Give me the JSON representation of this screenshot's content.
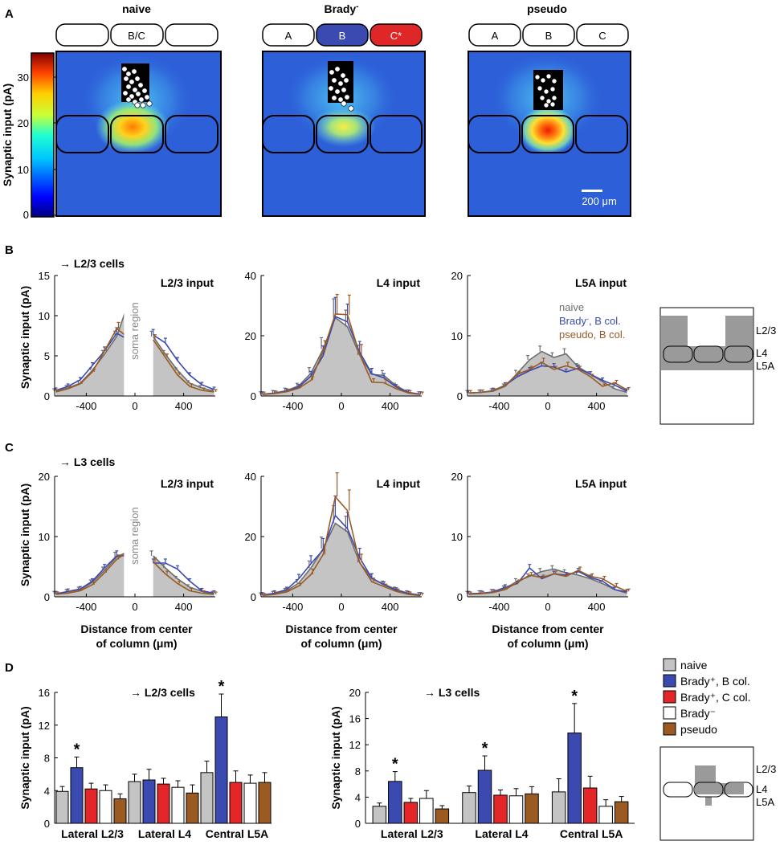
{
  "panels": {
    "A": {
      "label": "A",
      "heatmaps": [
        {
          "title": "naive",
          "boxes": [
            "",
            "B/C",
            ""
          ],
          "box_colors": [
            "#ffffff",
            "#ffffff",
            "#ffffff"
          ]
        },
        {
          "title": "Brady",
          "title_sup": "-",
          "boxes": [
            "A",
            "B",
            "C*"
          ],
          "box_colors": [
            "#ffffff",
            "#3b4ab0",
            "#e02727"
          ]
        },
        {
          "title": "pseudo",
          "boxes": [
            "A",
            "B",
            "C"
          ],
          "box_colors": [
            "#ffffff",
            "#ffffff",
            "#ffffff"
          ]
        }
      ],
      "colorbar": {
        "label": "Synaptic input (pA)",
        "ticks": [
          "30",
          "20",
          "10",
          "0"
        ]
      },
      "scalebar": "200 μm"
    },
    "B": {
      "label": "B",
      "subtitle": "→ L2/3 cells"
    },
    "C": {
      "label": "C",
      "subtitle": "→ L3 cells"
    },
    "D": {
      "label": "D"
    },
    "profile_ylabel": "Synaptic input (pA)",
    "profile_xlabel_1": "Distance from center",
    "profile_xlabel_2": "of column (μm)",
    "soma_region": "soma region",
    "legend_BC": {
      "naive": "naive",
      "brady_prefix": "Brady",
      "brady_sup": "-",
      "brady_suffix": ", B col.",
      "pseudo": "pseudo, B col."
    },
    "schematic_layers": {
      "l23": "L2/3",
      "l4": "L4",
      "l5a": "L5A"
    },
    "legend_D": [
      "naive",
      "Brady⁺, B col.",
      "Brady⁺, C col.",
      "Brady⁻",
      "pseudo"
    ],
    "colors": {
      "naive": "#c4c4c4",
      "naive_line": "#6e6e6e",
      "brady": "#3b4ab0",
      "bradyC": "#e52629",
      "bradyminus": "#ffffff",
      "pseudo": "#9a5a22"
    }
  },
  "chart_data": [
    {
      "id": "B1",
      "type": "line",
      "panel": "B",
      "title": "L2/3 input",
      "x": [
        -650,
        -550,
        -450,
        -350,
        -250,
        -150,
        -50,
        150,
        250,
        350,
        450,
        550,
        650
      ],
      "ylim": [
        0,
        15
      ],
      "xlim": [
        -660,
        660
      ],
      "yticks": [
        0,
        5,
        10,
        15
      ],
      "xticks": [
        -400,
        0,
        400
      ],
      "series": [
        {
          "name": "naive",
          "values": [
            0.6,
            1.0,
            1.6,
            3.2,
            5.2,
            7.4,
            11.8,
            7.4,
            5.2,
            3.2,
            1.6,
            1.0,
            0.6
          ]
        },
        {
          "name": "Brady-, B col.",
          "values": [
            0.7,
            1.2,
            2.0,
            3.8,
            5.6,
            7.8,
            7.0,
            7.6,
            6.6,
            4.4,
            2.6,
            1.4,
            0.8
          ]
        },
        {
          "name": "pseudo, B col.",
          "values": [
            0.5,
            0.9,
            1.5,
            3.0,
            5.6,
            8.4,
            7.2,
            7.0,
            4.8,
            2.6,
            1.2,
            0.7,
            0.5
          ]
        }
      ]
    },
    {
      "id": "B2",
      "type": "line",
      "panel": "B",
      "title": "L4 input",
      "x": [
        -650,
        -550,
        -450,
        -350,
        -250,
        -150,
        -50,
        50,
        150,
        250,
        350,
        450,
        550,
        650
      ],
      "ylim": [
        0,
        40
      ],
      "xlim": [
        -660,
        660
      ],
      "yticks": [
        0,
        20,
        40
      ],
      "xticks": [
        -400,
        0,
        400
      ],
      "series": [
        {
          "name": "naive",
          "values": [
            0.6,
            1.0,
            1.8,
            3.4,
            7.6,
            15.6,
            26.0,
            23.0,
            13.6,
            7.2,
            6.8,
            3.4,
            1.2,
            0.6
          ]
        },
        {
          "name": "Brady-, B col.",
          "values": [
            0.6,
            0.9,
            1.6,
            3.0,
            6.6,
            13.4,
            26.4,
            24.6,
            14.6,
            7.4,
            6.0,
            3.0,
            1.2,
            0.6
          ]
        },
        {
          "name": "pseudo, B col.",
          "values": [
            0.5,
            0.8,
            1.4,
            2.6,
            5.2,
            14.8,
            27.2,
            27.0,
            13.8,
            4.6,
            4.4,
            2.4,
            1.0,
            0.5
          ]
        }
      ]
    },
    {
      "id": "B3",
      "type": "line",
      "panel": "B",
      "title": "L5A input",
      "x": [
        -650,
        -550,
        -450,
        -350,
        -250,
        -150,
        -50,
        50,
        150,
        250,
        350,
        450,
        550,
        650
      ],
      "ylim": [
        0,
        20
      ],
      "xlim": [
        -660,
        660
      ],
      "yticks": [
        0,
        10,
        20
      ],
      "xticks": [
        -400,
        0,
        400
      ],
      "series": [
        {
          "name": "naive",
          "values": [
            0.5,
            0.6,
            0.8,
            1.6,
            3.8,
            6.0,
            7.4,
            6.4,
            7.0,
            4.8,
            3.6,
            2.4,
            1.2,
            0.6
          ]
        },
        {
          "name": "Brady-, B col.",
          "values": [
            0.5,
            0.6,
            0.9,
            1.8,
            3.2,
            4.2,
            5.0,
            4.8,
            4.0,
            4.6,
            3.6,
            2.6,
            1.8,
            0.8
          ]
        },
        {
          "name": "pseudo, B col.",
          "values": [
            0.5,
            0.6,
            0.8,
            1.8,
            3.6,
            4.4,
            5.6,
            4.4,
            5.0,
            4.4,
            3.2,
            1.6,
            2.2,
            1.0
          ]
        }
      ]
    },
    {
      "id": "C1",
      "type": "line",
      "panel": "C",
      "title": "L2/3 input",
      "x": [
        -650,
        -550,
        -450,
        -350,
        -250,
        -150,
        -50,
        150,
        250,
        350,
        450,
        550,
        650
      ],
      "ylim": [
        0,
        20
      ],
      "xlim": [
        -660,
        660
      ],
      "yticks": [
        0,
        10,
        20
      ],
      "xticks": [
        -400,
        0,
        400
      ],
      "series": [
        {
          "name": "naive",
          "values": [
            0.5,
            0.8,
            1.2,
            2.4,
            4.4,
            6.6,
            7.6,
            6.8,
            4.8,
            3.0,
            1.6,
            0.9,
            0.5
          ]
        },
        {
          "name": "Brady-, B col.",
          "values": [
            0.5,
            0.9,
            1.3,
            2.6,
            4.8,
            6.8,
            6.8,
            5.6,
            5.6,
            4.6,
            2.6,
            1.0,
            0.6
          ]
        },
        {
          "name": "pseudo, B col.",
          "values": [
            0.4,
            0.6,
            1.0,
            2.0,
            4.0,
            6.2,
            7.6,
            5.8,
            3.8,
            2.2,
            1.0,
            0.6,
            0.4
          ]
        }
      ]
    },
    {
      "id": "C2",
      "type": "line",
      "panel": "C",
      "title": "L4 input",
      "x": [
        -650,
        -550,
        -450,
        -350,
        -250,
        -150,
        -50,
        50,
        150,
        250,
        350,
        450,
        550,
        650
      ],
      "ylim": [
        0,
        40
      ],
      "xlim": [
        -660,
        660
      ],
      "yticks": [
        0,
        20,
        40
      ],
      "xticks": [
        -400,
        0,
        400
      ],
      "series": [
        {
          "name": "naive",
          "values": [
            0.5,
            1.0,
            2.0,
            4.6,
            9.6,
            16.0,
            24.4,
            21.6,
            11.4,
            6.0,
            4.2,
            2.4,
            1.2,
            0.6
          ]
        },
        {
          "name": "Brady-, B col.",
          "values": [
            0.6,
            1.2,
            2.4,
            6.0,
            11.0,
            15.6,
            27.0,
            22.6,
            13.0,
            6.2,
            4.0,
            2.2,
            1.0,
            0.6
          ]
        },
        {
          "name": "pseudo, B col.",
          "values": [
            0.4,
            0.8,
            1.6,
            3.6,
            7.4,
            14.0,
            33.2,
            28.6,
            11.4,
            5.0,
            3.4,
            1.8,
            0.8,
            0.4
          ]
        }
      ]
    },
    {
      "id": "C3",
      "type": "line",
      "panel": "C",
      "title": "L5A input",
      "x": [
        -650,
        -550,
        -450,
        -350,
        -250,
        -150,
        -50,
        50,
        150,
        250,
        350,
        450,
        550,
        650
      ],
      "ylim": [
        0,
        20
      ],
      "xlim": [
        -660,
        660
      ],
      "yticks": [
        0,
        10,
        20
      ],
      "xticks": [
        -400,
        0,
        400
      ],
      "series": [
        {
          "name": "naive",
          "values": [
            0.5,
            0.6,
            0.8,
            1.4,
            2.6,
            3.4,
            4.2,
            4.6,
            4.0,
            3.6,
            3.0,
            2.2,
            1.2,
            0.6
          ]
        },
        {
          "name": "Brady-, B col.",
          "values": [
            0.5,
            0.6,
            0.8,
            1.6,
            2.2,
            4.8,
            3.0,
            3.8,
            3.6,
            4.2,
            3.2,
            2.6,
            1.2,
            0.8
          ]
        },
        {
          "name": "pseudo, B col.",
          "values": [
            0.4,
            0.5,
            0.7,
            1.2,
            2.4,
            3.6,
            3.2,
            3.8,
            3.4,
            4.4,
            3.4,
            3.0,
            1.8,
            0.9
          ]
        }
      ]
    },
    {
      "id": "D1",
      "type": "bar",
      "panel": "D",
      "title": "→ L2/3 cells",
      "ylabel": "Synaptic input (pA)",
      "ylim": [
        0,
        16
      ],
      "yticks": [
        0,
        4,
        8,
        12,
        16
      ],
      "categories": [
        "Lateral L2/3",
        "Lateral L4",
        "Central L5A"
      ],
      "series": [
        {
          "name": "naive",
          "values": [
            3.9,
            5.1,
            6.2
          ],
          "errors": [
            0.6,
            0.9,
            1.4
          ]
        },
        {
          "name": "Brady+, B col.",
          "values": [
            6.8,
            5.3,
            13.0
          ],
          "errors": [
            1.3,
            1.3,
            2.8
          ]
        },
        {
          "name": "Brady+, C col.",
          "values": [
            4.2,
            4.8,
            5.0
          ],
          "errors": [
            0.7,
            0.7,
            1.4
          ]
        },
        {
          "name": "Brady-",
          "values": [
            4.0,
            4.4,
            4.9
          ],
          "errors": [
            0.7,
            0.8,
            1.0
          ]
        },
        {
          "name": "pseudo",
          "values": [
            3.0,
            3.7,
            5.0
          ],
          "errors": [
            0.6,
            1.0,
            1.2
          ]
        }
      ],
      "significance": [
        "*",
        "",
        "*"
      ]
    },
    {
      "id": "D2",
      "type": "bar",
      "panel": "D",
      "title": "→ L3 cells",
      "ylabel": "Synaptic input (pA)",
      "ylim": [
        0,
        20
      ],
      "yticks": [
        0,
        4,
        8,
        12,
        16,
        20
      ],
      "categories": [
        "Lateral L2/3",
        "Lateral L4",
        "Central L5A"
      ],
      "series": [
        {
          "name": "naive",
          "values": [
            2.6,
            4.7,
            4.8
          ],
          "errors": [
            0.5,
            1.0,
            2.0
          ]
        },
        {
          "name": "Brady+, B col.",
          "values": [
            6.4,
            8.1,
            13.8
          ],
          "errors": [
            1.5,
            2.2,
            4.5
          ]
        },
        {
          "name": "Brady+, C col.",
          "values": [
            3.2,
            4.3,
            5.4
          ],
          "errors": [
            0.6,
            0.8,
            1.8
          ]
        },
        {
          "name": "Brady-",
          "values": [
            3.8,
            4.2,
            2.6
          ],
          "errors": [
            1.2,
            1.1,
            1.0
          ]
        },
        {
          "name": "pseudo",
          "values": [
            2.2,
            4.5,
            3.3
          ],
          "errors": [
            0.5,
            1.1,
            0.8
          ]
        }
      ],
      "significance": [
        "*",
        "*",
        "*"
      ]
    }
  ]
}
